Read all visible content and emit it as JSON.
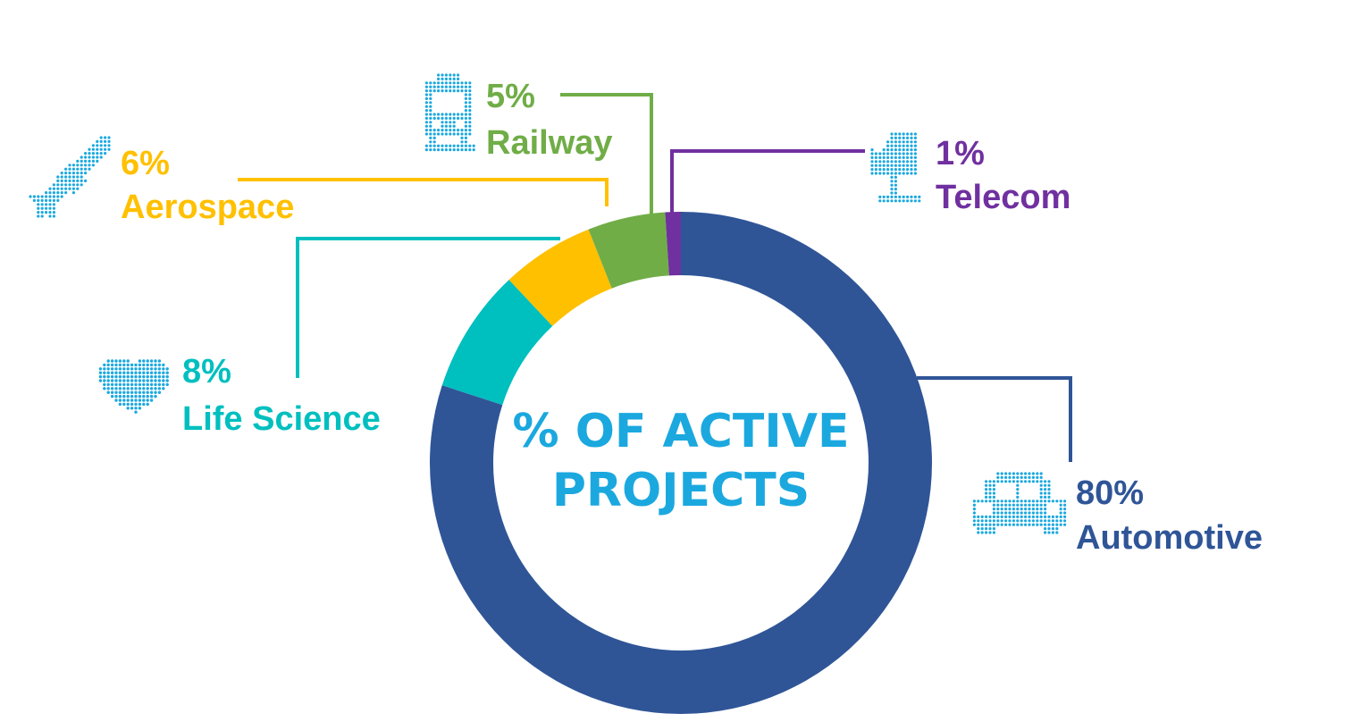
{
  "chart_data": {
    "type": "donut",
    "title": "% OF ACTIVE PROJECTS",
    "title_lines": [
      "% OF ACTIVE",
      "PROJECTS"
    ],
    "title_color": "#1BA8DF",
    "slices": [
      {
        "label": "Automotive",
        "value_text": "80%",
        "value": 80,
        "color": "#2F5597",
        "icon": "car-icon"
      },
      {
        "label": "Life Science",
        "value_text": "8%",
        "value": 8,
        "color": "#00BFBF",
        "icon": "heart-icon"
      },
      {
        "label": "Aerospace",
        "value_text": "6%",
        "value": 6,
        "color": "#FFC000",
        "icon": "airplane-icon"
      },
      {
        "label": "Railway",
        "value_text": "5%",
        "value": 5,
        "color": "#70AD47",
        "icon": "train-icon"
      },
      {
        "label": "Telecom",
        "value_text": "1%",
        "value": 1,
        "color": "#7030A0",
        "icon": "satellite-dish-icon"
      }
    ],
    "icon_color": "#1BA8DF",
    "legend": "callouts"
  }
}
